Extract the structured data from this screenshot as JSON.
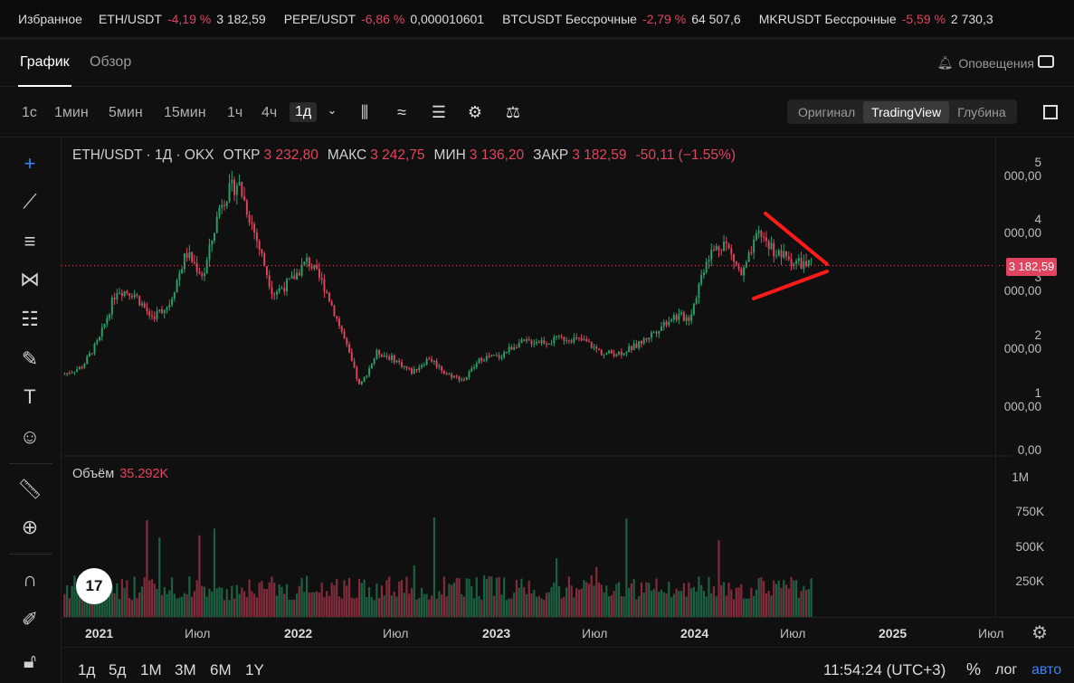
{
  "ticker": {
    "favorites_label": "Избранное",
    "items": [
      {
        "symbol": "ETH/USDT",
        "change": "-4,19 %",
        "price": "3 182,59"
      },
      {
        "symbol": "PEPE/USDT",
        "change": "-6,86 %",
        "price": "0,000010601"
      },
      {
        "symbol": "BTCUSDT Бессрочные",
        "change": "-2,79 %",
        "price": "64 507,6"
      },
      {
        "symbol": "MKRUSDT Бессрочные",
        "change": "-5,59 %",
        "price": "2 730,3"
      }
    ]
  },
  "tabs": {
    "chart": "График",
    "overview": "Обзор",
    "alerts": "Оповещения"
  },
  "toolbar": {
    "timeframes": [
      "1с",
      "1мин",
      "5мин",
      "15мин",
      "1ч",
      "4ч",
      "1д"
    ],
    "selected_timeframe": "1д",
    "views": [
      "Оригинал",
      "TradingView",
      "Глубина"
    ],
    "selected_view": "TradingView"
  },
  "legend": {
    "pair": "ETH/USDT · 1Д · OKX",
    "open_label": "ОТКР",
    "open": "3 232,80",
    "high_label": "МАКС",
    "high": "3 242,75",
    "low_label": "МИН",
    "low": "3 136,20",
    "close_label": "ЗАКР",
    "close": "3 182,59",
    "change": "-50,11 (−1.55%)"
  },
  "volume_legend": {
    "label": "Объём",
    "value": "35.292K"
  },
  "price_axis": [
    "5 000,00",
    "4 000,00",
    "3 000,00",
    "2 000,00",
    "1 000,00",
    "0,00"
  ],
  "current_price": "3 182,59",
  "volume_axis": [
    "1M",
    "750K",
    "500K",
    "250K"
  ],
  "time_axis": [
    "2021",
    "Июл",
    "2022",
    "Июл",
    "2023",
    "Июл",
    "2024",
    "Июл",
    "2025",
    "Июл"
  ],
  "ranges": [
    "1д",
    "5д",
    "1М",
    "3М",
    "6М",
    "1Y"
  ],
  "clock": "11:54:24 (UTC+3)",
  "scale": {
    "percent": "%",
    "log": "лог",
    "auto": "авто"
  },
  "colors": {
    "up": "#26a269",
    "down": "#e0445e",
    "annotation": "#ff1a1a",
    "accent": "#3b82f6"
  },
  "chart_data": {
    "type": "candlestick",
    "title": "ETH/USDT · 1Д · OKX",
    "ylim": [
      0,
      5000
    ],
    "x": [
      "2021-01",
      "2021-02",
      "2021-03",
      "2021-04",
      "2021-05",
      "2021-06",
      "2021-07",
      "2021-08",
      "2021-09",
      "2021-10",
      "2021-11",
      "2021-12",
      "2022-01",
      "2022-02",
      "2022-03",
      "2022-04",
      "2022-05",
      "2022-06",
      "2022-07",
      "2022-08",
      "2022-09",
      "2022-10",
      "2022-11",
      "2022-12",
      "2023-01",
      "2023-02",
      "2023-03",
      "2023-04",
      "2023-05",
      "2023-06",
      "2023-07",
      "2023-08",
      "2023-09",
      "2023-10",
      "2023-11",
      "2023-12",
      "2024-01",
      "2024-02",
      "2024-03",
      "2024-04",
      "2024-05",
      "2024-06",
      "2024-07",
      "2024-08"
    ],
    "close": [
      1300,
      1420,
      1900,
      2770,
      2700,
      2280,
      2500,
      3400,
      3000,
      4300,
      4640,
      3700,
      2700,
      2900,
      3280,
      2800,
      2000,
      1070,
      1680,
      1550,
      1330,
      1580,
      1300,
      1200,
      1580,
      1600,
      1820,
      1870,
      1870,
      1930,
      1860,
      1650,
      1670,
      1800,
      2050,
      2300,
      2280,
      3350,
      3600,
      3000,
      3750,
      3400,
      3250,
      3180
    ],
    "volume_ylim": [
      0,
      1000000
    ],
    "annotation": "triangle pattern drawn in red around mid-2024 highs"
  }
}
